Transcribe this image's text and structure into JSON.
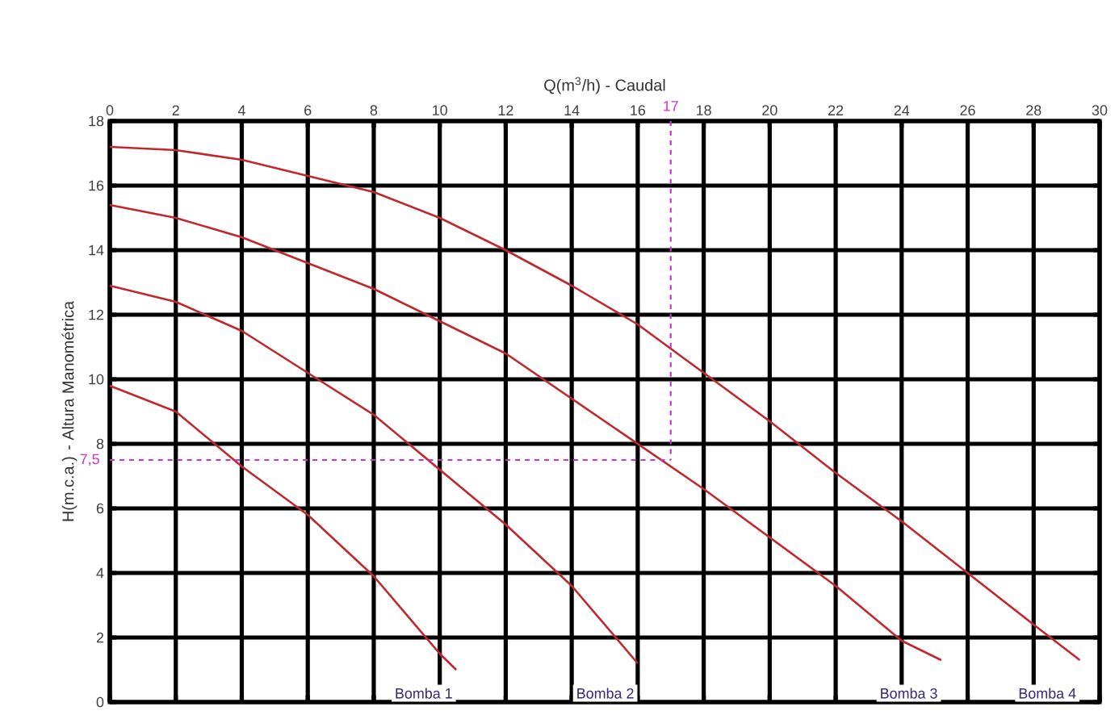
{
  "chart_data": {
    "type": "line",
    "xlabel": "Q(m$^{3}$/h) - Caudal",
    "ylabel": "H(m.c.a.) - Altura Manométrica",
    "xlim": [
      0,
      30
    ],
    "ylim": [
      0,
      18
    ],
    "xticks": [
      0,
      2,
      4,
      6,
      8,
      10,
      12,
      14,
      16,
      18,
      20,
      22,
      24,
      26,
      28,
      30
    ],
    "yticks": [
      0,
      2,
      4,
      6,
      8,
      10,
      12,
      14,
      16,
      18
    ],
    "grid": true,
    "marker": "none",
    "line_style": "solid",
    "series": [
      {
        "name": "Bomba 1",
        "color": "#c0282d",
        "x": [
          0,
          2,
          4,
          6,
          8,
          10,
          10.5
        ],
        "values": [
          9.8,
          9.0,
          7.3,
          5.8,
          3.9,
          1.5,
          1.0
        ]
      },
      {
        "name": "Bomba 2",
        "color": "#c0282d",
        "x": [
          0,
          2,
          4,
          6,
          8,
          10,
          12,
          14,
          16
        ],
        "values": [
          12.9,
          12.4,
          11.5,
          10.2,
          8.9,
          7.2,
          5.5,
          3.6,
          1.2
        ]
      },
      {
        "name": "Bomba 3",
        "color": "#c0282d",
        "x": [
          0,
          2,
          4,
          6,
          8,
          10,
          12,
          14,
          16,
          18,
          20,
          22,
          24,
          25.2
        ],
        "values": [
          15.4,
          15.0,
          14.4,
          13.6,
          12.8,
          11.8,
          10.8,
          9.4,
          8.0,
          6.6,
          5.1,
          3.6,
          1.9,
          1.3
        ]
      },
      {
        "name": "Bomba 4",
        "color": "#c0282d",
        "x": [
          0,
          2,
          4,
          6,
          8,
          10,
          12,
          14,
          16,
          18,
          20,
          22,
          24,
          26,
          28,
          29.4
        ],
        "values": [
          17.2,
          17.1,
          16.8,
          16.3,
          15.8,
          15.0,
          14.0,
          12.9,
          11.7,
          10.2,
          8.7,
          7.1,
          5.6,
          4.0,
          2.4,
          1.3
        ]
      }
    ],
    "ref_lines": [
      {
        "axis": "x",
        "value": 17,
        "label": "17",
        "color": "#cc33cc",
        "line_style": "dashed"
      },
      {
        "axis": "y",
        "value": 7.5,
        "label": "7,5",
        "color": "#cc33cc",
        "line_style": "dashed"
      }
    ]
  }
}
